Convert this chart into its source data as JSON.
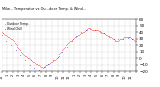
{
  "bg_color": "#ffffff",
  "red_color": "#ff0000",
  "blue_color": "#0000ff",
  "ylim": [
    -20,
    60
  ],
  "yticks": [
    -20,
    -10,
    0,
    10,
    20,
    30,
    40,
    50,
    60
  ],
  "xlim": [
    0,
    1440
  ],
  "title": "Milw... Temperatur vs Ou...door Temp. & Wind...",
  "legend": [
    "Outdoor Temp.",
    "Wind Chill"
  ],
  "temp_x": [
    0,
    10,
    20,
    30,
    40,
    50,
    60,
    70,
    80,
    90,
    100,
    110,
    120,
    130,
    140,
    150,
    160,
    170,
    180,
    190,
    200,
    210,
    220,
    230,
    240,
    250,
    260,
    270,
    280,
    290,
    300,
    310,
    320,
    330,
    340,
    350,
    360,
    370,
    380,
    390,
    400,
    410,
    420,
    430,
    440,
    450,
    460,
    470,
    480,
    490,
    500,
    510,
    520,
    530,
    540,
    550,
    560,
    570,
    580,
    590,
    600,
    610,
    620,
    630,
    640,
    650,
    660,
    670,
    680,
    690,
    700,
    710,
    720,
    730,
    740,
    750,
    760,
    770,
    780,
    790,
    800,
    810,
    820,
    830,
    840,
    850,
    860,
    870,
    880,
    890,
    900,
    910,
    920,
    930,
    940,
    950,
    960,
    970,
    980,
    990,
    1000,
    1010,
    1020,
    1030,
    1040,
    1050,
    1060,
    1070,
    1080,
    1090,
    1100,
    1110,
    1120,
    1130,
    1140,
    1150,
    1160,
    1170,
    1180,
    1190,
    1200,
    1210,
    1220,
    1230,
    1240,
    1250,
    1260,
    1270,
    1280,
    1290,
    1300,
    1310,
    1320,
    1330,
    1340,
    1350,
    1360,
    1370,
    1380,
    1390,
    1400,
    1410,
    1420,
    1430,
    1440
  ],
  "temp_y": [
    40,
    39,
    38,
    37,
    36,
    35,
    34,
    33,
    32,
    31,
    30,
    29,
    28,
    26,
    24,
    22,
    20,
    18,
    16,
    14,
    12,
    10,
    8,
    6,
    5,
    4,
    3,
    2,
    1,
    0,
    -1,
    -2,
    -3,
    -4,
    -5,
    -6,
    -7,
    -8,
    -9,
    -10,
    -11,
    -12,
    -13,
    -14,
    -15,
    -14,
    -13,
    -12,
    -11,
    -10,
    -9,
    -8,
    -7,
    -6,
    -5,
    -4,
    -3,
    -2,
    -1,
    0,
    2,
    4,
    6,
    8,
    10,
    12,
    14,
    16,
    18,
    20,
    22,
    24,
    25,
    26,
    27,
    28,
    29,
    30,
    31,
    32,
    33,
    34,
    35,
    36,
    37,
    38,
    39,
    40,
    41,
    42,
    43,
    44,
    45,
    46,
    47,
    46,
    45,
    44,
    43,
    43,
    43,
    43,
    43,
    43,
    42,
    41,
    40,
    39,
    38,
    38,
    38,
    37,
    36,
    35,
    34,
    33,
    32,
    32,
    31,
    30,
    29,
    28,
    27,
    26,
    26,
    27,
    28,
    29,
    30,
    30,
    31,
    32,
    33,
    33,
    33,
    33,
    33,
    33,
    32,
    31,
    30,
    29,
    28,
    27,
    27
  ],
  "chill_x": [
    0,
    50,
    100,
    150,
    200,
    250,
    300,
    350,
    400,
    450,
    500,
    550,
    600,
    650,
    700,
    750,
    800,
    850,
    900,
    950,
    1000,
    1050,
    1100,
    1150,
    1200,
    1250,
    1300,
    1350,
    1400
  ],
  "chill_y": [
    35,
    27,
    20,
    13,
    5,
    -3,
    -10,
    -15,
    -18,
    -13,
    -8,
    -3,
    2,
    10,
    18,
    27,
    34,
    40,
    44,
    45,
    44,
    42,
    38,
    34,
    30,
    29,
    30,
    31,
    30
  ],
  "xtick_positions": [
    0,
    60,
    120,
    180,
    240,
    300,
    360,
    420,
    480,
    540,
    600,
    660,
    720,
    780,
    840,
    900,
    960,
    1020,
    1080,
    1140,
    1200,
    1260,
    1320,
    1380,
    1440
  ],
  "xtick_labels": [
    "12",
    "1",
    "2",
    "3",
    "4",
    "5",
    "6",
    "7",
    "8",
    "9",
    "10",
    "11",
    "12",
    "1",
    "2",
    "3",
    "4",
    "5",
    "6",
    "7",
    "8",
    "9",
    "10",
    "11",
    ""
  ]
}
